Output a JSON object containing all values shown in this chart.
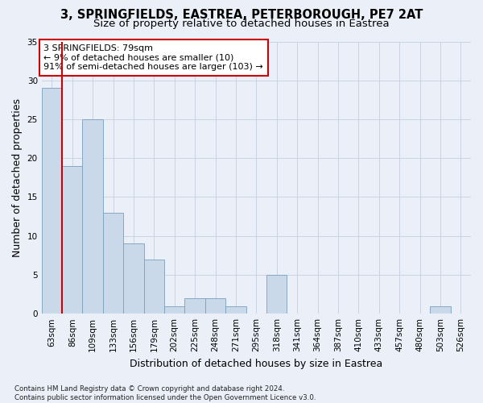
{
  "title_line1": "3, SPRINGFIELDS, EASTREA, PETERBOROUGH, PE7 2AT",
  "title_line2": "Size of property relative to detached houses in Eastrea",
  "xlabel": "Distribution of detached houses by size in Eastrea",
  "ylabel": "Number of detached properties",
  "footnote": "Contains HM Land Registry data © Crown copyright and database right 2024.\nContains public sector information licensed under the Open Government Licence v3.0.",
  "bin_labels": [
    "63sqm",
    "86sqm",
    "109sqm",
    "133sqm",
    "156sqm",
    "179sqm",
    "202sqm",
    "225sqm",
    "248sqm",
    "271sqm",
    "295sqm",
    "318sqm",
    "341sqm",
    "364sqm",
    "387sqm",
    "410sqm",
    "433sqm",
    "457sqm",
    "480sqm",
    "503sqm",
    "526sqm"
  ],
  "bar_values": [
    29,
    19,
    25,
    13,
    9,
    7,
    1,
    2,
    2,
    1,
    0,
    5,
    0,
    0,
    0,
    0,
    0,
    0,
    0,
    1,
    0
  ],
  "bar_color": "#c9d9ea",
  "bar_edge_color": "#7ba0bc",
  "red_line_x": 0.5,
  "annotation_text": "3 SPRINGFIELDS: 79sqm\n← 9% of detached houses are smaller (10)\n91% of semi-detached houses are larger (103) →",
  "annotation_box_facecolor": "white",
  "annotation_box_edgecolor": "#cc0000",
  "red_line_color": "#cc0000",
  "ylim_max": 35,
  "yticks": [
    0,
    5,
    10,
    15,
    20,
    25,
    30,
    35
  ],
  "grid_color": "#c5cfe0",
  "background_color": "#eaeff8",
  "title1_fontsize": 10.5,
  "title2_fontsize": 9.5,
  "axis_label_fontsize": 9,
  "tick_fontsize": 7.5,
  "annotation_fontsize": 8,
  "footnote_fontsize": 6.2
}
